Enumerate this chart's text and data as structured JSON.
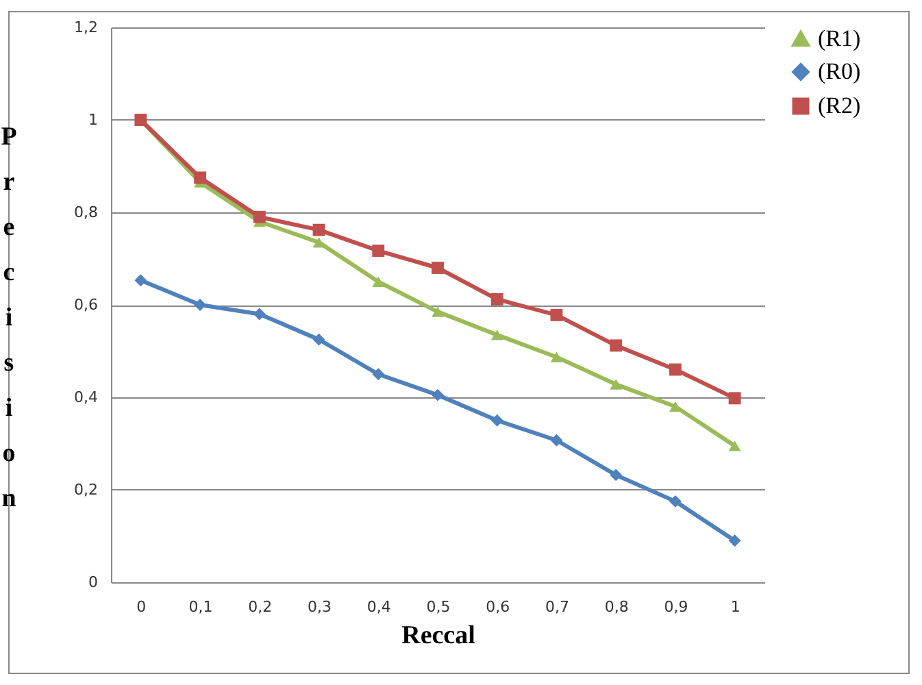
{
  "chart_data": {
    "type": "line",
    "xlabel": "Reccal",
    "ylabel": "Precision",
    "categories": [
      "0",
      "0,1",
      "0,2",
      "0,3",
      "0,4",
      "0,5",
      "0,6",
      "0,7",
      "0,8",
      "0,9",
      "1"
    ],
    "series": [
      {
        "name": "(R1)",
        "color": "#9bbb59",
        "marker": "triangle",
        "values": [
          1.0,
          0.865,
          0.78,
          0.735,
          0.65,
          0.585,
          0.535,
          0.487,
          0.428,
          0.38,
          0.295
        ]
      },
      {
        "name": "(R0)",
        "color": "#4f81bd",
        "marker": "diamond",
        "values": [
          0.653,
          0.6,
          0.58,
          0.525,
          0.45,
          0.405,
          0.35,
          0.307,
          0.232,
          0.175,
          0.09
        ]
      },
      {
        "name": "(R2)",
        "color": "#c0504d",
        "marker": "square",
        "values": [
          1.0,
          0.875,
          0.79,
          0.762,
          0.717,
          0.68,
          0.612,
          0.578,
          0.512,
          0.46,
          0.398
        ]
      }
    ],
    "ylim": [
      0,
      1.2
    ],
    "yticks": [
      {
        "value": 0,
        "label": "0"
      },
      {
        "value": 0.2,
        "label": "0,2"
      },
      {
        "value": 0.4,
        "label": "0,4"
      },
      {
        "value": 0.6,
        "label": "0,6"
      },
      {
        "value": 0.8,
        "label": "0,8"
      },
      {
        "value": 1,
        "label": "1"
      },
      {
        "value": 1.2,
        "label": "1,2"
      }
    ],
    "grid": "y",
    "legend": "right",
    "line_style": "solid"
  }
}
